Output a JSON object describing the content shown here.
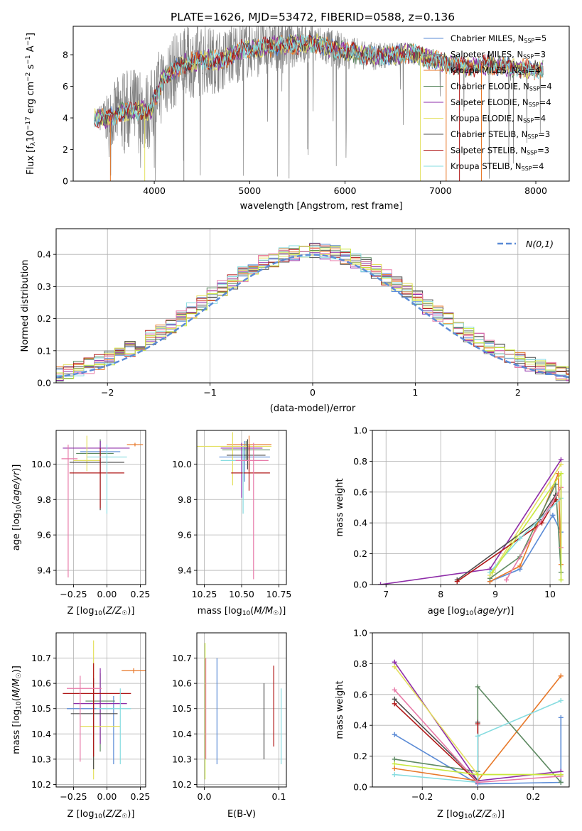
{
  "title": "PLATE=1626, MJD=53472, FIBERID=0588, z=0.136",
  "colors": {
    "Chabrier MILES": "#5b8bd6",
    "Salpeter MILES": "#8a8a8a",
    "Kroupa MILES": "#e8792a",
    "Chabrier ELODIE": "#5e8a62",
    "Salpeter ELODIE": "#8e2ca8",
    "Kroupa ELODIE": "#e4e060",
    "Chabrier STELIB": "#4d4d4d",
    "Salpeter STELIB": "#b01818",
    "Kroupa STELIB": "#86dce0",
    "pink": "#e87aa8",
    "lime": "#c8e83c",
    "normal": "#5b8bd6"
  },
  "chart_data": [
    {
      "type": "line",
      "id": "spectrum",
      "xlabel": "wavelength [Angstrom, rest frame]",
      "ylabel": "Flux [f",
      "xlim": [
        3150,
        8350
      ],
      "ylim": [
        0,
        9.8
      ],
      "xticks": [
        4000,
        5000,
        6000,
        7000,
        8000
      ],
      "yticks": [
        0,
        2,
        4,
        6,
        8
      ],
      "legend_position": "right",
      "legend": [
        {
          "label": "Chabrier MILES, N",
          "n": "=5"
        },
        {
          "label": "Salpeter MILES, N",
          "n": "=3"
        },
        {
          "label": "Kroupa MILES, N",
          "n": "=4"
        },
        {
          "label": "Chabrier ELODIE, N",
          "n": "=4"
        },
        {
          "label": "Salpeter ELODIE, N",
          "n": "=4"
        },
        {
          "label": "Kroupa ELODIE, N",
          "n": "=4"
        },
        {
          "label": "Chabrier STELIB, N",
          "n": "=3"
        },
        {
          "label": "Salpeter STELIB, N",
          "n": "=3"
        },
        {
          "label": "Kroupa STELIB, N",
          "n": "=4"
        }
      ],
      "model_continuum": {
        "x": [
          3370,
          3500,
          3650,
          3800,
          3950,
          4100,
          4300,
          4500,
          4700,
          4900,
          5100,
          5300,
          5500,
          5700,
          5900,
          6100,
          6300,
          6500,
          6700,
          6900,
          7100,
          7300,
          7500,
          7700,
          7900,
          8080
        ],
        "y": [
          4.1,
          3.9,
          4.4,
          4.5,
          4.4,
          6.5,
          7.4,
          7.7,
          7.6,
          8.3,
          8.4,
          8.6,
          8.7,
          8.7,
          8.3,
          8.1,
          7.9,
          8.0,
          8.1,
          7.7,
          7.4,
          7.2,
          7.4,
          7.2,
          7.1,
          7.0
        ]
      },
      "observed_envelope": {
        "x": [
          3370,
          3500,
          3650,
          3800,
          3950,
          4100,
          4300,
          4500,
          4700,
          4900,
          5100,
          5300,
          5500,
          5700,
          5900,
          6100,
          6300,
          6500,
          6700,
          6900,
          7100,
          7300,
          7500,
          7700,
          7900,
          8080
        ],
        "noise": [
          0.3,
          1.5,
          2.6,
          2.8,
          2.5,
          2.6,
          2.3,
          2.3,
          2.0,
          2.0,
          1.8,
          1.6,
          1.5,
          1.3,
          1.3,
          1.0,
          0.9,
          0.8,
          0.7,
          0.6,
          0.5,
          0.4,
          0.4,
          0.3,
          0.3,
          0.3
        ]
      }
    },
    {
      "type": "histogram",
      "id": "residuals",
      "xlabel": "(data-model)/error",
      "ylabel": "Normed distribution",
      "xlim": [
        -2.5,
        2.5
      ],
      "ylim": [
        0,
        0.48
      ],
      "xticks": [
        -2,
        -1,
        0,
        1,
        2
      ],
      "yticks": [
        0.0,
        0.1,
        0.2,
        0.3,
        0.4
      ],
      "legend_position": "top-right",
      "legend_label": "N(0,1)",
      "bin_width": 0.1
    },
    {
      "type": "errorbar",
      "id": "age-vs-Z",
      "xlabel": "Z [log10(Z/Z☉)]",
      "ylabel": "age  [log10(age/yr)]",
      "xlim": [
        -0.38,
        0.29
      ],
      "ylim": [
        9.32,
        10.19
      ],
      "xticks": [
        -0.25,
        0.0,
        0.25
      ],
      "yticks": [
        9.4,
        9.6,
        9.8,
        10.0
      ],
      "points": [
        {
          "x": -0.05,
          "y": 10.07,
          "xerr": [
            0.15,
            0.15
          ],
          "yerr": [
            0.12,
            0.06
          ],
          "series": "Chabrier MILES"
        },
        {
          "x": 0.21,
          "y": 10.11,
          "xerr": [
            0.06,
            0.06
          ],
          "yerr": [
            0.01,
            0.01
          ],
          "series": "Kroupa MILES"
        },
        {
          "x": -0.05,
          "y": 10.06,
          "xerr": [
            0.18,
            0.1
          ],
          "yerr": [
            0.01,
            0.08
          ],
          "series": "Chabrier ELODIE"
        },
        {
          "x": -0.05,
          "y": 10.09,
          "xerr": [
            0.28,
            0.22
          ],
          "yerr": [
            0.01,
            0.04
          ],
          "series": "Salpeter ELODIE"
        },
        {
          "x": -0.15,
          "y": 10.02,
          "xerr": [
            0.1,
            0.1
          ],
          "yerr": [
            0.06,
            0.14
          ],
          "series": "Kroupa ELODIE"
        },
        {
          "x": -0.05,
          "y": 10.01,
          "xerr": [
            0.23,
            0.18
          ],
          "yerr": [
            0.27,
            0.05
          ],
          "series": "Chabrier STELIB"
        },
        {
          "x": -0.05,
          "y": 9.95,
          "xerr": [
            0.23,
            0.18
          ],
          "yerr": [
            0.2,
            0.14
          ],
          "series": "Salpeter STELIB"
        },
        {
          "x": 0.0,
          "y": 10.04,
          "xerr": [
            0.15,
            0.15
          ],
          "yerr": [
            0.32,
            0.07
          ],
          "series": "Kroupa STELIB"
        },
        {
          "x": -0.29,
          "y": 10.03,
          "xerr": [
            0.05,
            0.07
          ],
          "yerr": [
            0.67,
            0.08
          ],
          "series": "pink"
        }
      ]
    },
    {
      "type": "errorbar",
      "id": "age-vs-mass",
      "xlabel": "mass [log10(M/M☉)]",
      "ylabel": "",
      "xlim": [
        10.2,
        10.8
      ],
      "ylim": [
        9.32,
        10.19
      ],
      "xticks": [
        10.25,
        10.5,
        10.75
      ],
      "yticks": [
        9.4,
        9.6,
        9.8,
        10.0
      ],
      "points": [
        {
          "x": 10.52,
          "y": 10.04,
          "xerr": [
            0.17,
            0.17
          ],
          "yerr": [
            0.14,
            0.09
          ],
          "series": "Chabrier MILES"
        },
        {
          "x": 10.55,
          "y": 10.11,
          "xerr": [
            0.15,
            0.15
          ],
          "yerr": [
            0.15,
            0.05
          ],
          "series": "Kroupa MILES"
        },
        {
          "x": 10.53,
          "y": 10.08,
          "xerr": [
            0.16,
            0.16
          ],
          "yerr": [
            0.06,
            0.05
          ],
          "series": "Chabrier ELODIE"
        },
        {
          "x": 10.5,
          "y": 10.09,
          "xerr": [
            0.14,
            0.14
          ],
          "yerr": [
            0.28,
            0.03
          ],
          "series": "Salpeter ELODIE"
        },
        {
          "x": 10.44,
          "y": 10.1,
          "xerr": [
            0.26,
            0.26
          ],
          "yerr": [
            0.22,
            0.08
          ],
          "series": "Kroupa ELODIE"
        },
        {
          "x": 10.54,
          "y": 10.05,
          "xerr": [
            0.14,
            0.12
          ],
          "yerr": [
            0.08,
            0.09
          ],
          "series": "Chabrier STELIB"
        },
        {
          "x": 10.55,
          "y": 9.95,
          "xerr": [
            0.12,
            0.14
          ],
          "yerr": [
            0.1,
            0.16
          ],
          "series": "Salpeter STELIB"
        },
        {
          "x": 10.51,
          "y": 10.02,
          "xerr": [
            0.15,
            0.13
          ],
          "yerr": [
            0.3,
            0.08
          ],
          "series": "Kroupa STELIB"
        },
        {
          "x": 10.58,
          "y": 10.02,
          "xerr": [
            0.12,
            0.1
          ],
          "yerr": [
            0.67,
            0.1
          ],
          "series": "pink"
        }
      ]
    },
    {
      "type": "line",
      "id": "weight-vs-age",
      "xlabel": "age  [log10(age/yr)]",
      "ylabel": "mass weight",
      "xlim": [
        6.75,
        10.35
      ],
      "ylim": [
        0,
        1.0
      ],
      "xticks": [
        7,
        8,
        9,
        10
      ],
      "yticks": [
        0.0,
        0.2,
        0.4,
        0.6,
        0.8,
        1.0
      ],
      "series": [
        {
          "name": "Chabrier MILES",
          "x": [
            8.9,
            9.45,
            10.05,
            10.2
          ],
          "y": [
            0.02,
            0.1,
            0.45,
            0.34
          ]
        },
        {
          "name": "Kroupa MILES",
          "x": [
            8.9,
            9.45,
            10.15,
            10.2
          ],
          "y": [
            0.02,
            0.12,
            0.72,
            0.13
          ]
        },
        {
          "name": "Chabrier ELODIE",
          "x": [
            8.9,
            9.45,
            10.1,
            10.2
          ],
          "y": [
            0.04,
            0.18,
            0.65,
            0.08
          ]
        },
        {
          "name": "Salpeter ELODIE",
          "x": [
            6.9,
            8.9,
            10.2
          ],
          "y": [
            0.0,
            0.1,
            0.81
          ]
        },
        {
          "name": "Kroupa ELODIE",
          "x": [
            8.9,
            10.2
          ],
          "y": [
            0.06,
            0.78
          ]
        },
        {
          "name": "Chabrier STELIB",
          "x": [
            8.3,
            9.8,
            10.1
          ],
          "y": [
            0.03,
            0.42,
            0.58
          ]
        },
        {
          "name": "Salpeter STELIB",
          "x": [
            8.3,
            9.85,
            10.1
          ],
          "y": [
            0.02,
            0.4,
            0.55
          ]
        },
        {
          "name": "Kroupa STELIB",
          "x": [
            8.9,
            9.45,
            10.2
          ],
          "y": [
            0.08,
            0.3,
            0.56
          ]
        },
        {
          "name": "pink",
          "x": [
            9.2,
            10.2,
            10.2
          ],
          "y": [
            0.03,
            0.63,
            0.24
          ]
        },
        {
          "name": "lime",
          "x": [
            8.95,
            10.2,
            10.2
          ],
          "y": [
            0.08,
            0.72,
            0.03
          ]
        }
      ]
    },
    {
      "type": "errorbar",
      "id": "mass-vs-Z",
      "xlabel": "Z [log10(Z/Z☉)]",
      "ylabel": "mass [log10(M/M☉)]",
      "xlim": [
        -0.38,
        0.29
      ],
      "ylim": [
        10.19,
        10.8
      ],
      "xticks": [
        -0.25,
        0.0,
        0.25
      ],
      "yticks": [
        10.2,
        10.3,
        10.4,
        10.5,
        10.6,
        10.7
      ],
      "points": [
        {
          "x": 0.05,
          "y": 10.5,
          "xerr": [
            0.35,
            0.0
          ],
          "yerr": [
            0.22,
            0.05
          ],
          "series": "Chabrier MILES"
        },
        {
          "x": 0.2,
          "y": 10.65,
          "xerr": [
            0.09,
            0.09
          ],
          "yerr": [
            0.01,
            0.01
          ],
          "series": "Kroupa MILES"
        },
        {
          "x": -0.05,
          "y": 10.53,
          "xerr": [
            0.11,
            0.11
          ],
          "yerr": [
            0.2,
            0.11
          ],
          "series": "Chabrier ELODIE"
        },
        {
          "x": -0.05,
          "y": 10.52,
          "xerr": [
            0.2,
            0.2
          ],
          "yerr": [
            0.16,
            0.14
          ],
          "series": "Salpeter ELODIE"
        },
        {
          "x": -0.1,
          "y": 10.43,
          "xerr": [
            0.1,
            0.2
          ],
          "yerr": [
            0.21,
            0.34
          ],
          "series": "Kroupa ELODIE"
        },
        {
          "x": -0.1,
          "y": 10.48,
          "xerr": [
            0.17,
            0.18
          ],
          "yerr": [
            0.22,
            0.14
          ],
          "series": "Chabrier STELIB"
        },
        {
          "x": -0.1,
          "y": 10.56,
          "xerr": [
            0.23,
            0.28
          ],
          "yerr": [
            0.25,
            0.12
          ],
          "series": "Salpeter STELIB"
        },
        {
          "x": 0.1,
          "y": 10.5,
          "xerr": [
            0.18,
            0.08
          ],
          "yerr": [
            0.22,
            0.08
          ],
          "series": "Kroupa STELIB"
        },
        {
          "x": -0.2,
          "y": 10.58,
          "xerr": [
            0.1,
            0.16
          ],
          "yerr": [
            0.29,
            0.05
          ],
          "series": "pink"
        }
      ]
    },
    {
      "type": "errorbar",
      "id": "mass-vs-ebv",
      "xlabel": "E(B-V)",
      "ylabel": "",
      "xlim": [
        -0.01,
        0.11
      ],
      "ylim": [
        10.19,
        10.8
      ],
      "xticks": [
        0.0,
        0.1
      ],
      "yticks": [
        10.2,
        10.3,
        10.4,
        10.5,
        10.6,
        10.7
      ],
      "points": [
        {
          "x": 0.017,
          "y": 10.5,
          "yerr": [
            0.22,
            0.2
          ],
          "series": "Chabrier MILES"
        },
        {
          "x": 0.08,
          "y": 10.45,
          "yerr": [
            0.15,
            0.15
          ],
          "series": "Chabrier STELIB"
        },
        {
          "x": 0.093,
          "y": 10.51,
          "yerr": [
            0.16,
            0.16
          ],
          "series": "Salpeter STELIB"
        },
        {
          "x": 0.103,
          "y": 10.43,
          "yerr": [
            0.15,
            0.15
          ],
          "series": "Kroupa STELIB"
        },
        {
          "x": 0.001,
          "y": 10.48,
          "yerr": [
            0.26,
            0.28
          ],
          "series": "lime"
        },
        {
          "x": 0.002,
          "y": 10.5,
          "yerr": [
            0.2,
            0.2
          ],
          "series": "pink"
        }
      ]
    },
    {
      "type": "line",
      "id": "weight-vs-Z",
      "xlabel": "Z [log10(Z/Z☉)]",
      "ylabel": "mass weight",
      "xlim": [
        -0.38,
        0.33
      ],
      "ylim": [
        0,
        1.0
      ],
      "xticks": [
        -0.2,
        0.0,
        0.2
      ],
      "yticks": [
        0.0,
        0.2,
        0.4,
        0.6,
        0.8,
        1.0
      ],
      "series": [
        {
          "name": "Chabrier MILES",
          "x": [
            -0.3,
            0.0,
            0.3,
            0.3
          ],
          "y": [
            0.34,
            0.02,
            0.03,
            0.45
          ]
        },
        {
          "name": "Kroupa MILES",
          "x": [
            -0.3,
            0.0,
            0.3
          ],
          "y": [
            0.12,
            0.04,
            0.72
          ]
        },
        {
          "name": "Chabrier ELODIE",
          "x": [
            -0.3,
            0.0,
            0.0,
            0.3
          ],
          "y": [
            0.18,
            0.1,
            0.65,
            0.03
          ]
        },
        {
          "name": "Salpeter ELODIE",
          "x": [
            -0.3,
            0.0,
            0.3
          ],
          "y": [
            0.81,
            0.04,
            0.1
          ]
        },
        {
          "name": "Kroupa ELODIE",
          "x": [
            -0.3,
            0.0,
            0.3
          ],
          "y": [
            0.78,
            0.08,
            0.08
          ]
        },
        {
          "name": "Chabrier STELIB",
          "x": [
            -0.3,
            0.0,
            0.0
          ],
          "y": [
            0.57,
            0.04,
            0.42
          ]
        },
        {
          "name": "Salpeter STELIB",
          "x": [
            -0.3,
            0.0,
            0.0
          ],
          "y": [
            0.54,
            0.03,
            0.41
          ]
        },
        {
          "name": "Kroupa STELIB",
          "x": [
            -0.3,
            0.0,
            0.0,
            0.3
          ],
          "y": [
            0.08,
            0.03,
            0.33,
            0.56
          ]
        },
        {
          "name": "pink",
          "x": [
            -0.3,
            0.0,
            0.3
          ],
          "y": [
            0.63,
            0.03,
            0.07
          ]
        },
        {
          "name": "lime",
          "x": [
            -0.3,
            0.0,
            0.3
          ],
          "y": [
            0.15,
            0.08,
            0.08
          ]
        }
      ]
    }
  ]
}
